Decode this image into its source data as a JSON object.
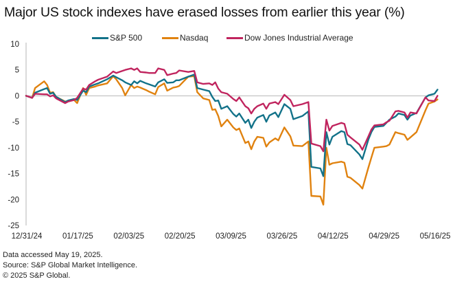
{
  "title": "Major US stock indexes have erased losses from earlier this year (%)",
  "footer": {
    "accessed": "Data accessed May 19, 2025.",
    "source": "Source: S&P Global Market Intelligence.",
    "copyright": "© 2025 S&P Global."
  },
  "chart_data": {
    "type": "line",
    "title": "Major US stock indexes have erased losses from earlier this year (%)",
    "xlabel": "",
    "ylabel": "",
    "x_unit": "calendar days since 12/31/24",
    "ylim": [
      -25,
      10
    ],
    "yticks": [
      10,
      5,
      0,
      -5,
      -10,
      -15,
      -20,
      -25
    ],
    "xticks": [
      {
        "x": 0,
        "label": "12/31/24"
      },
      {
        "x": 17,
        "label": "01/17/25"
      },
      {
        "x": 34,
        "label": "02/03/25"
      },
      {
        "x": 51,
        "label": "02/20/25"
      },
      {
        "x": 68,
        "label": "03/09/25"
      },
      {
        "x": 85,
        "label": "03/26/25"
      },
      {
        "x": 102,
        "label": "04/12/25"
      },
      {
        "x": 119,
        "label": "04/29/25"
      },
      {
        "x": 136,
        "label": "05/16/25"
      }
    ],
    "xlim": [
      0,
      142
    ],
    "grid": false,
    "zero_line": true,
    "legend_position": "top",
    "series": [
      {
        "name": "S&P 500",
        "color": "#127289",
        "points": [
          [
            0,
            0
          ],
          [
            2,
            -0.4
          ],
          [
            3,
            0.6
          ],
          [
            6,
            1.3
          ],
          [
            7,
            1.5
          ],
          [
            8,
            0.4
          ],
          [
            9,
            0.6
          ],
          [
            10,
            -0.2
          ],
          [
            13,
            -1.2
          ],
          [
            14,
            -0.9
          ],
          [
            16,
            -0.6
          ],
          [
            17,
            -0.8
          ],
          [
            19,
            1
          ],
          [
            20,
            0.7
          ],
          [
            21,
            1.8
          ],
          [
            23,
            2.2
          ],
          [
            24,
            2.4
          ],
          [
            27,
            3.2
          ],
          [
            29,
            3.9
          ],
          [
            30,
            3.6
          ],
          [
            32,
            3.0
          ],
          [
            33,
            2.6
          ],
          [
            35,
            2.1
          ],
          [
            36,
            2.8
          ],
          [
            37,
            2.4
          ],
          [
            38,
            2.9
          ],
          [
            40,
            2.4
          ],
          [
            41,
            2.2
          ],
          [
            43,
            1.8
          ],
          [
            44,
            2.6
          ],
          [
            46,
            3.2
          ],
          [
            47,
            2.5
          ],
          [
            49,
            2.6
          ],
          [
            50,
            3.0
          ],
          [
            51,
            3.0
          ],
          [
            54,
            3.7
          ],
          [
            56,
            4.1
          ],
          [
            57,
            1.5
          ],
          [
            59,
            1.2
          ],
          [
            61,
            0.9
          ],
          [
            62,
            -0.2
          ],
          [
            63,
            -1.0
          ],
          [
            64,
            -0.9
          ],
          [
            65,
            -2.5
          ],
          [
            67,
            -2.0
          ],
          [
            69,
            -3.5
          ],
          [
            70,
            -4.0
          ],
          [
            71,
            -3.4
          ],
          [
            73,
            -5.2
          ],
          [
            74,
            -4.6
          ],
          [
            75,
            -6.2
          ],
          [
            76,
            -5.0
          ],
          [
            77,
            -4.2
          ],
          [
            79,
            -3.7
          ],
          [
            80,
            -5.0
          ],
          [
            81,
            -3.8
          ],
          [
            83,
            -3.2
          ],
          [
            84,
            -4.1
          ],
          [
            86,
            -1.6
          ],
          [
            88,
            -2.5
          ],
          [
            89,
            -4.5
          ],
          [
            92,
            -3.9
          ],
          [
            94,
            -3.0
          ],
          [
            95,
            -13.7
          ],
          [
            98,
            -14.0
          ],
          [
            99,
            -15.5
          ],
          [
            100,
            -7.0
          ],
          [
            101,
            -9.4
          ],
          [
            102,
            -7.9
          ],
          [
            105,
            -6.8
          ],
          [
            106,
            -7.0
          ],
          [
            107,
            -9.3
          ],
          [
            108,
            -9.5
          ],
          [
            111,
            -11.3
          ],
          [
            112,
            -12.2
          ],
          [
            114,
            -8.4
          ],
          [
            115,
            -7.0
          ],
          [
            116,
            -6.0
          ],
          [
            119,
            -5.8
          ],
          [
            120,
            -5.2
          ],
          [
            121,
            -4.6
          ],
          [
            123,
            -4.0
          ],
          [
            124,
            -3.4
          ],
          [
            126,
            -3.7
          ],
          [
            127,
            -4.6
          ],
          [
            128,
            -3.8
          ],
          [
            130,
            -3.3
          ],
          [
            133,
            -0.3
          ],
          [
            134,
            0.1
          ],
          [
            136,
            0.4
          ],
          [
            137,
            1.2
          ]
        ]
      },
      {
        "name": "Nasdaq",
        "color": "#e0820f",
        "points": [
          [
            0,
            0
          ],
          [
            2,
            -0.4
          ],
          [
            3,
            1.5
          ],
          [
            6,
            2.8
          ],
          [
            7,
            2.1
          ],
          [
            8,
            0.6
          ],
          [
            9,
            0.7
          ],
          [
            10,
            -0.2
          ],
          [
            13,
            -1.1
          ],
          [
            14,
            -1.0
          ],
          [
            16,
            -0.8
          ],
          [
            17,
            -1.4
          ],
          [
            19,
            1.5
          ],
          [
            20,
            0.2
          ],
          [
            21,
            1.5
          ],
          [
            23,
            1.8
          ],
          [
            24,
            2.0
          ],
          [
            27,
            2.4
          ],
          [
            29,
            3.8
          ],
          [
            30,
            3.2
          ],
          [
            32,
            1.5
          ],
          [
            33,
            0.1
          ],
          [
            35,
            2.1
          ],
          [
            36,
            1.5
          ],
          [
            37,
            1.8
          ],
          [
            38,
            1.6
          ],
          [
            40,
            1.1
          ],
          [
            41,
            0.8
          ],
          [
            43,
            0.3
          ],
          [
            44,
            1.7
          ],
          [
            46,
            2.4
          ],
          [
            47,
            1.0
          ],
          [
            49,
            1.6
          ],
          [
            50,
            1.7
          ],
          [
            51,
            1.9
          ],
          [
            54,
            3.7
          ],
          [
            56,
            3.8
          ],
          [
            57,
            0.7
          ],
          [
            59,
            -0.5
          ],
          [
            61,
            -0.8
          ],
          [
            62,
            -2.7
          ],
          [
            63,
            -2.6
          ],
          [
            64,
            -3.9
          ],
          [
            65,
            -5.9
          ],
          [
            67,
            -4.6
          ],
          [
            69,
            -6.1
          ],
          [
            70,
            -6.6
          ],
          [
            71,
            -6.3
          ],
          [
            73,
            -9.1
          ],
          [
            74,
            -8.8
          ],
          [
            75,
            -10.3
          ],
          [
            76,
            -8.8
          ],
          [
            77,
            -7.9
          ],
          [
            79,
            -8.1
          ],
          [
            80,
            -9.8
          ],
          [
            81,
            -9.0
          ],
          [
            83,
            -8.2
          ],
          [
            84,
            -8.6
          ],
          [
            86,
            -6.1
          ],
          [
            88,
            -7.8
          ],
          [
            89,
            -9.6
          ],
          [
            92,
            -9.7
          ],
          [
            94,
            -8.8
          ],
          [
            95,
            -19.3
          ],
          [
            98,
            -19.4
          ],
          [
            99,
            -21.0
          ],
          [
            100,
            -10.0
          ],
          [
            101,
            -13.3
          ],
          [
            102,
            -13.0
          ],
          [
            105,
            -12.7
          ],
          [
            106,
            -12.9
          ],
          [
            107,
            -15.6
          ],
          [
            108,
            -15.8
          ],
          [
            111,
            -17.2
          ],
          [
            112,
            -17.9
          ],
          [
            114,
            -13.8
          ],
          [
            115,
            -11.9
          ],
          [
            116,
            -10.0
          ],
          [
            119,
            -9.8
          ],
          [
            120,
            -9.7
          ],
          [
            121,
            -9.4
          ],
          [
            123,
            -7.0
          ],
          [
            124,
            -7.2
          ],
          [
            126,
            -7.5
          ],
          [
            127,
            -8.5
          ],
          [
            128,
            -8.0
          ],
          [
            130,
            -7.0
          ],
          [
            133,
            -2.8
          ],
          [
            134,
            -1.5
          ],
          [
            136,
            -1.1
          ],
          [
            137,
            -0.7
          ]
        ]
      },
      {
        "name": "Dow Jones Industrial Average",
        "color": "#c0245e",
        "points": [
          [
            0,
            0
          ],
          [
            2,
            -0.4
          ],
          [
            3,
            0.4
          ],
          [
            6,
            0.3
          ],
          [
            7,
            0.3
          ],
          [
            8,
            -0.1
          ],
          [
            9,
            0.1
          ],
          [
            10,
            -0.5
          ],
          [
            13,
            -1.4
          ],
          [
            14,
            -1.1
          ],
          [
            16,
            -0.8
          ],
          [
            17,
            -0.4
          ],
          [
            19,
            1.4
          ],
          [
            20,
            1.2
          ],
          [
            21,
            2.1
          ],
          [
            23,
            2.8
          ],
          [
            24,
            3.1
          ],
          [
            27,
            3.7
          ],
          [
            29,
            4.7
          ],
          [
            30,
            4.4
          ],
          [
            32,
            4.8
          ],
          [
            33,
            5.0
          ],
          [
            35,
            5.3
          ],
          [
            36,
            5.0
          ],
          [
            37,
            5.3
          ],
          [
            38,
            4.6
          ],
          [
            40,
            4.5
          ],
          [
            41,
            4.4
          ],
          [
            43,
            4.4
          ],
          [
            44,
            5.3
          ],
          [
            46,
            5.0
          ],
          [
            47,
            4.0
          ],
          [
            49,
            4.3
          ],
          [
            50,
            4.4
          ],
          [
            51,
            4.9
          ],
          [
            54,
            4.6
          ],
          [
            56,
            4.8
          ],
          [
            57,
            2.6
          ],
          [
            59,
            2.3
          ],
          [
            61,
            2.4
          ],
          [
            62,
            2.1
          ],
          [
            63,
            2.6
          ],
          [
            64,
            1.4
          ],
          [
            65,
            0.7
          ],
          [
            67,
            0.4
          ],
          [
            69,
            -0.6
          ],
          [
            70,
            -1.0
          ],
          [
            71,
            -0.3
          ],
          [
            73,
            -2.0
          ],
          [
            74,
            -2.4
          ],
          [
            75,
            -3.4
          ],
          [
            76,
            -2.5
          ],
          [
            77,
            -2.0
          ],
          [
            79,
            -1.5
          ],
          [
            80,
            -2.5
          ],
          [
            81,
            -1.5
          ],
          [
            83,
            -1.2
          ],
          [
            84,
            -1.6
          ],
          [
            86,
            0.2
          ],
          [
            88,
            -0.8
          ],
          [
            89,
            -2.0
          ],
          [
            92,
            -1.6
          ],
          [
            94,
            -1.2
          ],
          [
            95,
            -9.2
          ],
          [
            98,
            -9.7
          ],
          [
            99,
            -10.7
          ],
          [
            100,
            -4.6
          ],
          [
            101,
            -6.7
          ],
          [
            102,
            -5.8
          ],
          [
            105,
            -5.2
          ],
          [
            106,
            -5.4
          ],
          [
            107,
            -7.5
          ],
          [
            108,
            -8.0
          ],
          [
            111,
            -9.4
          ],
          [
            112,
            -10.4
          ],
          [
            114,
            -7.8
          ],
          [
            115,
            -6.5
          ],
          [
            116,
            -5.7
          ],
          [
            119,
            -5.5
          ],
          [
            120,
            -5.1
          ],
          [
            121,
            -4.8
          ],
          [
            123,
            -3.0
          ],
          [
            124,
            -2.9
          ],
          [
            126,
            -3.2
          ],
          [
            127,
            -4.2
          ],
          [
            128,
            -3.2
          ],
          [
            130,
            -3.4
          ],
          [
            133,
            -0.3
          ],
          [
            134,
            -0.9
          ],
          [
            136,
            -1.0
          ],
          [
            137,
            0.0
          ]
        ]
      }
    ]
  }
}
